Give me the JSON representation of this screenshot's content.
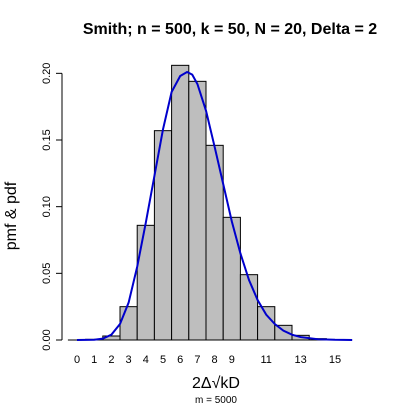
{
  "chart_data": {
    "type": "bar",
    "title": "Smith; n = 500, k = 50, N = 20, Delta = 2",
    "xlabel": "2Δ√kD",
    "ylabel": "pmf & pdf",
    "subtitle": "m = 5000",
    "xlim": [
      -0.5,
      16
    ],
    "ylim": [
      0,
      0.21
    ],
    "x_ticks": [
      0,
      1,
      2,
      3,
      4,
      5,
      6,
      7,
      8,
      9,
      11,
      13,
      15
    ],
    "y_ticks": [
      "0.00",
      "0.05",
      "0.10",
      "0.15",
      "0.20"
    ],
    "y_tick_values": [
      0,
      0.05,
      0.1,
      0.15,
      0.2
    ],
    "bars": [
      {
        "x": 0,
        "value": 0.0
      },
      {
        "x": 1,
        "value": 0.0005
      },
      {
        "x": 2,
        "value": 0.003
      },
      {
        "x": 3,
        "value": 0.025
      },
      {
        "x": 4,
        "value": 0.086
      },
      {
        "x": 5,
        "value": 0.157
      },
      {
        "x": 6,
        "value": 0.206
      },
      {
        "x": 7,
        "value": 0.194
      },
      {
        "x": 8,
        "value": 0.146
      },
      {
        "x": 9,
        "value": 0.092
      },
      {
        "x": 10,
        "value": 0.049
      },
      {
        "x": 11,
        "value": 0.025
      },
      {
        "x": 12,
        "value": 0.011
      },
      {
        "x": 13,
        "value": 0.0035
      },
      {
        "x": 14,
        "value": 0.001
      },
      {
        "x": 15,
        "value": 0.0003
      }
    ],
    "bar_color": "#bebebe",
    "curve": {
      "color": "#0000cc",
      "points": [
        [
          0,
          0.0
        ],
        [
          1,
          0.0002
        ],
        [
          1.5,
          0.001
        ],
        [
          2,
          0.004
        ],
        [
          2.5,
          0.012
        ],
        [
          3,
          0.028
        ],
        [
          3.5,
          0.055
        ],
        [
          4,
          0.088
        ],
        [
          4.5,
          0.123
        ],
        [
          5,
          0.158
        ],
        [
          5.5,
          0.186
        ],
        [
          6,
          0.198
        ],
        [
          6.4,
          0.201
        ],
        [
          6.7,
          0.199
        ],
        [
          7,
          0.192
        ],
        [
          7.5,
          0.172
        ],
        [
          8,
          0.145
        ],
        [
          8.5,
          0.117
        ],
        [
          9,
          0.089
        ],
        [
          9.5,
          0.065
        ],
        [
          10,
          0.045
        ],
        [
          10.5,
          0.03
        ],
        [
          11,
          0.019
        ],
        [
          11.5,
          0.012
        ],
        [
          12,
          0.007
        ],
        [
          12.5,
          0.004
        ],
        [
          13,
          0.0022
        ],
        [
          14,
          0.0006
        ],
        [
          15,
          0.00015
        ],
        [
          16,
          0.0
        ]
      ]
    }
  }
}
